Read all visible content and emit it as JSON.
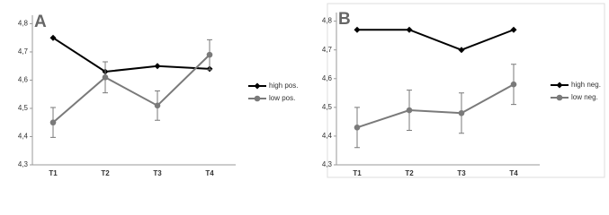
{
  "chart_data": [
    {
      "type": "line",
      "title": "A",
      "categories": [
        "T1",
        "T2",
        "T3",
        "T4"
      ],
      "series": [
        {
          "name": "high pos.",
          "color": "#000000",
          "marker": "diamond",
          "values": [
            4.75,
            4.63,
            4.65,
            4.64
          ]
        },
        {
          "name": "low pos.",
          "color": "#7a7a7a",
          "marker": "circle",
          "values": [
            4.45,
            4.61,
            4.51,
            4.69
          ],
          "errors": [
            0.053,
            0.055,
            0.052,
            0.053
          ]
        }
      ],
      "ylim": [
        4.3,
        4.83
      ],
      "yticks": [
        {
          "value": 4.3,
          "label": "4,3"
        },
        {
          "value": 4.4,
          "label": "4,4"
        },
        {
          "value": 4.5,
          "label": "4,5"
        },
        {
          "value": 4.6,
          "label": "4,6"
        },
        {
          "value": 4.7,
          "label": "4,7"
        },
        {
          "value": 4.8,
          "label": "4,8"
        }
      ],
      "legend": "right"
    },
    {
      "type": "line",
      "title": "B",
      "categories": [
        "T1",
        "T2",
        "T3",
        "T4"
      ],
      "series": [
        {
          "name": "high neg.",
          "color": "#000000",
          "marker": "diamond",
          "values": [
            4.77,
            4.77,
            4.7,
            4.77
          ]
        },
        {
          "name": "low neg.",
          "color": "#7a7a7a",
          "marker": "circle",
          "values": [
            4.43,
            4.49,
            4.48,
            4.58
          ],
          "errors": [
            0.07,
            0.07,
            0.07,
            0.07
          ]
        }
      ],
      "ylim": [
        4.3,
        4.83
      ],
      "yticks": [
        {
          "value": 4.3,
          "label": "4,3"
        },
        {
          "value": 4.4,
          "label": "4,4"
        },
        {
          "value": 4.5,
          "label": "4,5"
        },
        {
          "value": 4.6,
          "label": "4,6"
        },
        {
          "value": 4.7,
          "label": "4,7"
        },
        {
          "value": 4.8,
          "label": "4,8"
        }
      ],
      "legend": "right"
    }
  ]
}
